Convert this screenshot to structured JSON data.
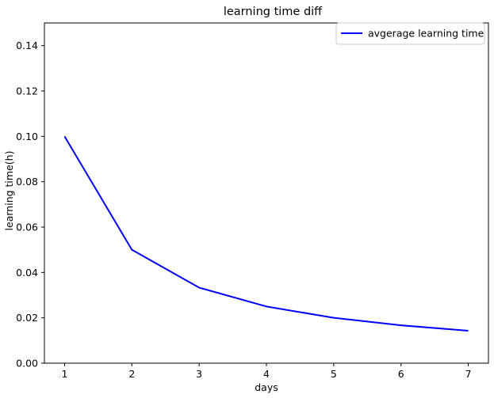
{
  "chart_data": {
    "type": "line",
    "title": "learning time diff",
    "xlabel": "days",
    "ylabel": "learning time(h)",
    "x": [
      1,
      2,
      3,
      4,
      5,
      6,
      7
    ],
    "xticks": [
      1,
      2,
      3,
      4,
      5,
      6,
      7
    ],
    "xlim": [
      0.7,
      7.3
    ],
    "ylim": [
      0,
      0.15
    ],
    "yticks": [
      0.0,
      0.02,
      0.04,
      0.06,
      0.08,
      0.1,
      0.12,
      0.14
    ],
    "series": [
      {
        "name": "avgerage learning time",
        "color": "#0000ff",
        "values": [
          0.1,
          0.05,
          0.0333,
          0.025,
          0.02,
          0.0167,
          0.0143
        ]
      }
    ],
    "grid": false,
    "legend": "top-right"
  }
}
